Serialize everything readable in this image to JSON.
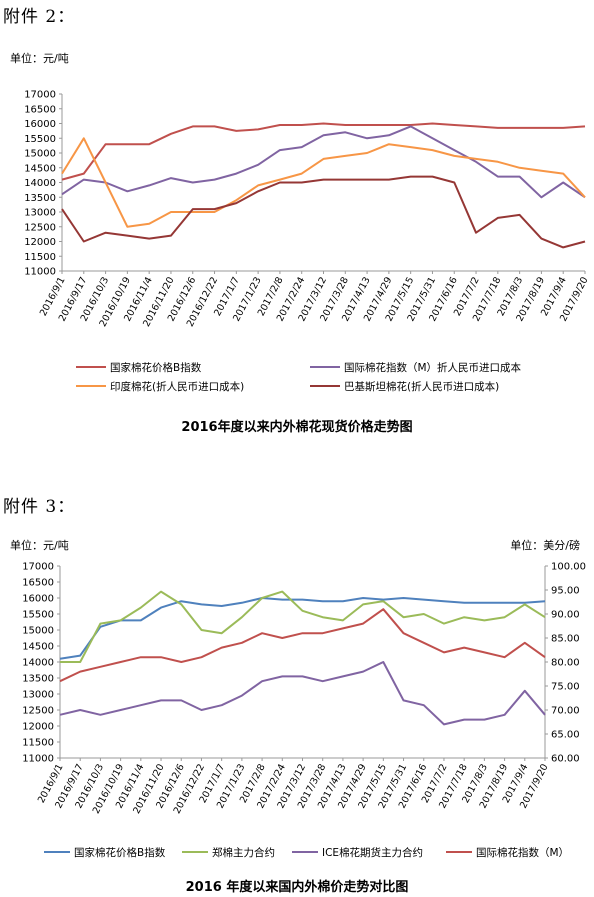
{
  "doc": {
    "heading1": "附件 2：",
    "unit1": "单位：元/吨",
    "caption1": "2016年度以来内外棉花现货价格走势图",
    "heading2": "附件 3：",
    "unit2_left": "单位：元/吨",
    "unit2_right": "单位：美分/磅",
    "caption2": "2016 年度以来国内外棉价走势对比图"
  },
  "chart_data": [
    {
      "type": "line",
      "ylim": [
        11000,
        17000
      ],
      "yticks": [
        "11000",
        "11500",
        "12000",
        "12500",
        "13000",
        "13500",
        "14000",
        "14500",
        "15000",
        "15500",
        "16000",
        "16500",
        "17000"
      ],
      "categories": [
        "2016/9/1",
        "2016/9/17",
        "2016/10/3",
        "2016/10/19",
        "2016/11/4",
        "2016/11/20",
        "2016/12/6",
        "2016/12/22",
        "2017/1/7",
        "2017/1/23",
        "2017/2/8",
        "2017/2/24",
        "2017/3/12",
        "2017/3/28",
        "2017/4/13",
        "2017/4/29",
        "2017/5/15",
        "2017/5/31",
        "2017/6/16",
        "2017/7/2",
        "2017/7/18",
        "2017/8/3",
        "2017/8/19",
        "2017/9/4",
        "2017/9/20"
      ],
      "legend": "bottom",
      "series": [
        {
          "name": "国家棉花价格B指数",
          "color": "#c0504d",
          "values": [
            14100,
            14300,
            15300,
            15300,
            15300,
            15650,
            15900,
            15900,
            15750,
            15800,
            15950,
            15950,
            16000,
            15950,
            15950,
            15950,
            15950,
            16000,
            15950,
            15900,
            15850,
            15850,
            15850,
            15850,
            15900
          ]
        },
        {
          "name": "国际棉花指数（M）折人民币进口成本",
          "color": "#8064a2",
          "values": [
            13600,
            14100,
            14000,
            13700,
            13900,
            14150,
            14000,
            14100,
            14300,
            14600,
            15100,
            15200,
            15600,
            15700,
            15500,
            15600,
            15900,
            15500,
            15100,
            14700,
            14200,
            14200,
            13500,
            14000,
            13500
          ]
        },
        {
          "name": "印度棉花(折人民币进口成本)",
          "color": "#f79646",
          "values": [
            14300,
            15500,
            14000,
            12500,
            12600,
            13000,
            13000,
            13000,
            13400,
            13900,
            14100,
            14300,
            14800,
            14900,
            15000,
            15300,
            15200,
            15100,
            14900,
            14800,
            14700,
            14500,
            14400,
            14300,
            13500
          ]
        },
        {
          "name": "巴基斯坦棉花(折人民币进口成本)",
          "color": "#953735",
          "values": [
            13100,
            12000,
            12300,
            12200,
            12100,
            12200,
            13100,
            13100,
            13300,
            13700,
            14000,
            14000,
            14100,
            14100,
            14100,
            14100,
            14200,
            14200,
            14000,
            12300,
            12800,
            12900,
            12100,
            11800,
            12000
          ]
        }
      ]
    },
    {
      "type": "line",
      "ylim": [
        11000,
        17000
      ],
      "ylim_right": [
        60,
        100
      ],
      "yticks": [
        "11000",
        "11500",
        "12000",
        "12500",
        "13000",
        "13500",
        "14000",
        "14500",
        "15000",
        "15500",
        "16000",
        "16500",
        "17000"
      ],
      "yticks_right": [
        "60.00",
        "65.00",
        "70.00",
        "75.00",
        "80.00",
        "85.00",
        "90.00",
        "95.00",
        "100.00"
      ],
      "categories": [
        "2016/9/1",
        "2016/9/17",
        "2016/10/3",
        "2016/10/19",
        "2016/11/4",
        "2016/11/20",
        "2016/12/6",
        "2016/12/22",
        "2017/1/7",
        "2017/1/23",
        "2017/2/8",
        "2017/2/24",
        "2017/3/12",
        "2017/3/28",
        "2017/4/13",
        "2017/4/29",
        "2017/5/15",
        "2017/5/31",
        "2017/6/16",
        "2017/7/2",
        "2017/7/18",
        "2017/8/3",
        "2017/8/19",
        "2017/9/4",
        "2017/9/20"
      ],
      "legend": "bottom",
      "series": [
        {
          "name": "国家棉花价格B指数",
          "color": "#4f81bd",
          "axis": "left",
          "values": [
            14100,
            14200,
            15100,
            15300,
            15300,
            15700,
            15900,
            15800,
            15750,
            15850,
            16000,
            15950,
            15950,
            15900,
            15900,
            16000,
            15950,
            16000,
            15950,
            15900,
            15850,
            15850,
            15850,
            15850,
            15900
          ]
        },
        {
          "name": "郑棉主力合约",
          "color": "#9bbb59",
          "axis": "left",
          "values": [
            14000,
            14000,
            15200,
            15300,
            15700,
            16200,
            15800,
            15000,
            14900,
            15400,
            16000,
            16200,
            15600,
            15400,
            15300,
            15800,
            15900,
            15400,
            15500,
            15200,
            15400,
            15300,
            15400,
            15800,
            15400
          ]
        },
        {
          "name": "ICE棉花期货主力合约",
          "color": "#8064a2",
          "axis": "right",
          "values": [
            69,
            70,
            69,
            70,
            71,
            72,
            72,
            70,
            71,
            73,
            76,
            77,
            77,
            76,
            77,
            78,
            80,
            72,
            71,
            67,
            68,
            68,
            69,
            74,
            69
          ]
        },
        {
          "name": "国际棉花指数（M）",
          "color": "#c0504d",
          "axis": "right",
          "values": [
            76,
            78,
            79,
            80,
            81,
            81,
            80,
            81,
            83,
            84,
            86,
            85,
            86,
            86,
            87,
            88,
            91,
            86,
            84,
            82,
            83,
            82,
            81,
            84,
            81
          ]
        }
      ]
    }
  ]
}
